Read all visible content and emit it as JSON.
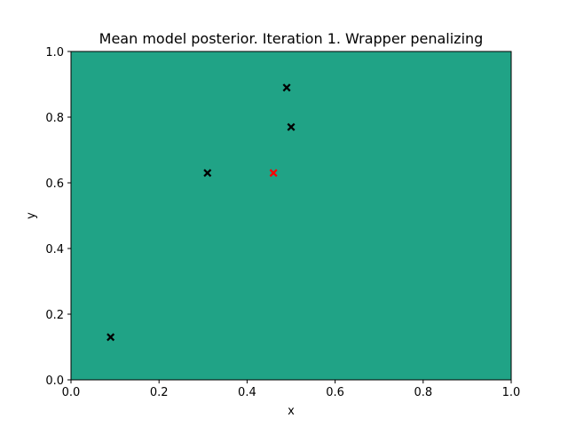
{
  "chart_data": {
    "type": "scatter",
    "title": "Mean model posterior. Iteration 1. Wrapper penalizing",
    "xlabel": "x",
    "ylabel": "y",
    "xlim": [
      0.0,
      1.0
    ],
    "ylim": [
      0.0,
      1.0
    ],
    "xticks": [
      "0.0",
      "0.2",
      "0.4",
      "0.6",
      "0.8",
      "1.0"
    ],
    "yticks": [
      "0.0",
      "0.2",
      "0.4",
      "0.6",
      "0.8",
      "1.0"
    ],
    "grid": false,
    "background_color": "#20a386",
    "series": [
      {
        "marker": "x-filled",
        "color": "#000000",
        "points": [
          {
            "x": 0.09,
            "y": 0.13
          },
          {
            "x": 0.31,
            "y": 0.63
          },
          {
            "x": 0.49,
            "y": 0.89
          },
          {
            "x": 0.5,
            "y": 0.77
          }
        ]
      },
      {
        "marker": "x-filled",
        "color": "#ff0000",
        "points": [
          {
            "x": 0.46,
            "y": 0.63
          }
        ]
      }
    ]
  }
}
